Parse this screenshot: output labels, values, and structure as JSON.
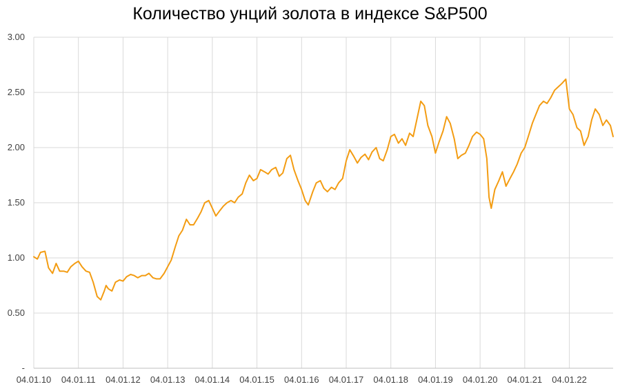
{
  "chart_data": {
    "type": "line",
    "title": "Количество унций золота в индексе S&P500",
    "xlabel": "",
    "ylabel": "",
    "ylim": [
      0,
      3
    ],
    "y_ticks": [
      "-",
      "0.50",
      "1.00",
      "1.50",
      "2.00",
      "2.50",
      "3.00"
    ],
    "y_tick_values": [
      0,
      0.5,
      1.0,
      1.5,
      2.0,
      2.5,
      3.0
    ],
    "x_ticks": [
      "04.01.10",
      "04.01.11",
      "04.01.12",
      "04.01.13",
      "04.01.14",
      "04.01.15",
      "04.01.16",
      "04.01.17",
      "04.01.18",
      "04.01.19",
      "04.01.20",
      "04.01.21",
      "04.01.22"
    ],
    "x_tick_years": [
      2010,
      2011,
      2012,
      2013,
      2014,
      2015,
      2016,
      2017,
      2018,
      2019,
      2020,
      2021,
      2022
    ],
    "xlim_years": [
      2010,
      2022.98
    ],
    "grid": true,
    "line_color": "#F39C12",
    "series": [
      {
        "x": [
          2010.0,
          2010.08,
          2010.15,
          2010.25,
          2010.33,
          2010.42,
          2010.5,
          2010.58,
          2010.67,
          2010.75,
          2010.83,
          2010.92,
          2011.0,
          2011.08,
          2011.17,
          2011.25,
          2011.33,
          2011.42,
          2011.5,
          2011.58,
          2011.62,
          2011.67,
          2011.75,
          2011.83,
          2011.92,
          2012.0,
          2012.08,
          2012.17,
          2012.25,
          2012.33,
          2012.42,
          2012.5,
          2012.58,
          2012.67,
          2012.75,
          2012.83,
          2012.92,
          2013.0,
          2013.08,
          2013.17,
          2013.25,
          2013.33,
          2013.42,
          2013.5,
          2013.58,
          2013.67,
          2013.75,
          2013.83,
          2013.92,
          2014.0,
          2014.08,
          2014.17,
          2014.25,
          2014.33,
          2014.42,
          2014.5,
          2014.58,
          2014.67,
          2014.75,
          2014.83,
          2014.92,
          2015.0,
          2015.08,
          2015.17,
          2015.25,
          2015.33,
          2015.42,
          2015.5,
          2015.58,
          2015.67,
          2015.75,
          2015.83,
          2015.92,
          2016.0,
          2016.08,
          2016.15,
          2016.25,
          2016.33,
          2016.42,
          2016.5,
          2016.58,
          2016.67,
          2016.75,
          2016.83,
          2016.92,
          2017.0,
          2017.08,
          2017.17,
          2017.25,
          2017.33,
          2017.42,
          2017.5,
          2017.58,
          2017.67,
          2017.75,
          2017.83,
          2017.92,
          2018.0,
          2018.08,
          2018.17,
          2018.25,
          2018.33,
          2018.42,
          2018.5,
          2018.58,
          2018.67,
          2018.75,
          2018.83,
          2018.92,
          2019.0,
          2019.08,
          2019.17,
          2019.25,
          2019.33,
          2019.42,
          2019.5,
          2019.58,
          2019.67,
          2019.75,
          2019.83,
          2019.92,
          2020.0,
          2020.08,
          2020.15,
          2020.2,
          2020.25,
          2020.33,
          2020.42,
          2020.5,
          2020.58,
          2020.67,
          2020.75,
          2020.83,
          2020.92,
          2021.0,
          2021.08,
          2021.17,
          2021.25,
          2021.33,
          2021.42,
          2021.5,
          2021.58,
          2021.67,
          2021.75,
          2021.83,
          2021.92,
          2022.0,
          2022.08,
          2022.17,
          2022.25,
          2022.33,
          2022.42,
          2022.5,
          2022.58,
          2022.67,
          2022.75,
          2022.83,
          2022.92,
          2022.98
        ],
        "values": [
          1.01,
          0.99,
          1.05,
          1.06,
          0.91,
          0.86,
          0.95,
          0.88,
          0.88,
          0.87,
          0.92,
          0.95,
          0.97,
          0.92,
          0.88,
          0.87,
          0.78,
          0.65,
          0.62,
          0.7,
          0.75,
          0.72,
          0.7,
          0.78,
          0.8,
          0.79,
          0.83,
          0.85,
          0.84,
          0.82,
          0.84,
          0.84,
          0.86,
          0.82,
          0.81,
          0.81,
          0.86,
          0.92,
          0.98,
          1.1,
          1.2,
          1.25,
          1.35,
          1.3,
          1.3,
          1.36,
          1.42,
          1.5,
          1.52,
          1.45,
          1.38,
          1.43,
          1.47,
          1.5,
          1.52,
          1.5,
          1.55,
          1.58,
          1.68,
          1.75,
          1.7,
          1.72,
          1.8,
          1.78,
          1.76,
          1.8,
          1.82,
          1.74,
          1.77,
          1.9,
          1.93,
          1.8,
          1.7,
          1.62,
          1.52,
          1.48,
          1.6,
          1.68,
          1.7,
          1.63,
          1.6,
          1.64,
          1.62,
          1.68,
          1.72,
          1.88,
          1.98,
          1.92,
          1.86,
          1.91,
          1.94,
          1.89,
          1.96,
          2.0,
          1.9,
          1.88,
          1.98,
          2.1,
          2.12,
          2.04,
          2.08,
          2.02,
          2.13,
          2.1,
          2.25,
          2.42,
          2.38,
          2.2,
          2.1,
          1.95,
          2.05,
          2.15,
          2.28,
          2.22,
          2.08,
          1.9,
          1.93,
          1.95,
          2.02,
          2.1,
          2.14,
          2.12,
          2.08,
          1.9,
          1.55,
          1.45,
          1.62,
          1.7,
          1.78,
          1.65,
          1.72,
          1.78,
          1.85,
          1.95,
          2.0,
          2.1,
          2.22,
          2.3,
          2.38,
          2.42,
          2.4,
          2.45,
          2.52,
          2.55,
          2.58,
          2.62,
          2.35,
          2.3,
          2.18,
          2.15,
          2.02,
          2.1,
          2.25,
          2.35,
          2.3,
          2.2,
          2.25,
          2.2,
          2.1
        ]
      }
    ]
  }
}
